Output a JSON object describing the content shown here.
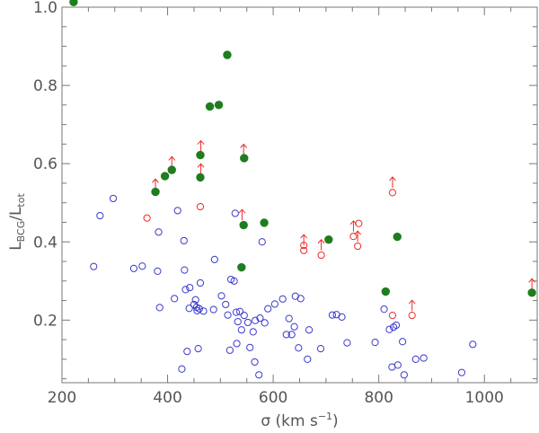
{
  "chart_data": {
    "type": "scatter",
    "xlabel_main": "σ (km s",
    "xlabel_exp": "−1",
    "xlabel_close": ")",
    "ylabel_L1": "L",
    "ylabel_sub1": "BCG",
    "ylabel_sep": "/L",
    "ylabel_sub2": "tot",
    "xlim": [
      200,
      1100
    ],
    "ylim": [
      0.04,
      1.0
    ],
    "x_ticks": [
      200,
      400,
      600,
      800,
      1000
    ],
    "x_tick_labels": [
      "200",
      "400",
      "600",
      "800",
      "1000"
    ],
    "y_ticks": [
      0.2,
      0.4,
      0.6,
      0.8,
      1.0
    ],
    "y_tick_labels": [
      "0.2",
      "0.4",
      "0.6",
      "0.8",
      "1.0"
    ],
    "colors": {
      "axis": "#777777",
      "blue": "#3a3acd",
      "red": "#ee2a2a",
      "green": "#1e7d1e"
    },
    "series": [
      {
        "marker": "open-circle",
        "color": "#3a3acd",
        "points": [
          [
            260,
            0.337
          ],
          [
            272,
            0.467
          ],
          [
            297,
            0.511
          ],
          [
            336,
            0.332
          ],
          [
            352,
            0.338
          ],
          [
            381,
            0.325
          ],
          [
            383,
            0.425
          ],
          [
            385,
            0.232
          ],
          [
            413,
            0.255
          ],
          [
            419,
            0.48
          ],
          [
            427,
            0.075
          ],
          [
            431,
            0.403
          ],
          [
            432,
            0.328
          ],
          [
            434,
            0.278
          ],
          [
            437,
            0.12
          ],
          [
            441,
            0.23
          ],
          [
            442,
            0.283
          ],
          [
            450,
            0.24
          ],
          [
            453,
            0.252
          ],
          [
            455,
            0.233
          ],
          [
            456,
            0.224
          ],
          [
            458,
            0.127
          ],
          [
            460,
            0.229
          ],
          [
            462,
            0.295
          ],
          [
            468,
            0.223
          ],
          [
            487,
            0.227
          ],
          [
            489,
            0.355
          ],
          [
            502,
            0.262
          ],
          [
            510,
            0.24
          ],
          [
            514,
            0.213
          ],
          [
            518,
            0.123
          ],
          [
            520,
            0.304
          ],
          [
            526,
            0.3
          ],
          [
            528,
            0.473
          ],
          [
            530,
            0.22
          ],
          [
            531,
            0.14
          ],
          [
            533,
            0.196
          ],
          [
            537,
            0.222
          ],
          [
            540,
            0.175
          ],
          [
            545,
            0.212
          ],
          [
            552,
            0.194
          ],
          [
            556,
            0.13
          ],
          [
            562,
            0.17
          ],
          [
            565,
            0.093
          ],
          [
            566,
            0.199
          ],
          [
            573,
            0.06
          ],
          [
            575,
            0.205
          ],
          [
            579,
            0.4
          ],
          [
            584,
            0.193
          ],
          [
            590,
            0.229
          ],
          [
            603,
            0.241
          ],
          [
            618,
            0.254
          ],
          [
            625,
            0.163
          ],
          [
            630,
            0.204
          ],
          [
            635,
            0.163
          ],
          [
            640,
            0.183
          ],
          [
            642,
            0.261
          ],
          [
            648,
            0.129
          ],
          [
            652,
            0.255
          ],
          [
            665,
            0.1
          ],
          [
            668,
            0.175
          ],
          [
            690,
            0.127
          ],
          [
            712,
            0.213
          ],
          [
            720,
            0.214
          ],
          [
            730,
            0.208
          ],
          [
            740,
            0.142
          ],
          [
            793,
            0.143
          ],
          [
            810,
            0.228
          ],
          [
            820,
            0.176
          ],
          [
            825,
            0.08
          ],
          [
            828,
            0.182
          ],
          [
            833,
            0.187
          ],
          [
            836,
            0.085
          ],
          [
            845,
            0.145
          ],
          [
            848,
            0.06
          ],
          [
            870,
            0.1
          ],
          [
            885,
            0.103
          ],
          [
            957,
            0.066
          ],
          [
            978,
            0.138
          ]
        ]
      },
      {
        "marker": "open-circle",
        "color": "#ee2a2a",
        "points": [
          [
            361,
            0.461
          ],
          [
            462,
            0.49
          ],
          [
            826,
            0.212
          ],
          [
            863,
            0.212
          ],
          [
            691,
            0.366
          ],
          [
            658,
            0.378
          ],
          [
            658,
            0.391
          ],
          [
            752,
            0.414
          ],
          [
            760,
            0.389
          ],
          [
            762,
            0.447
          ],
          [
            826,
            0.526
          ]
        ]
      },
      {
        "marker": "up-arrow",
        "color": "#ee2a2a",
        "points": [
          [
            377,
            0.547
          ],
          [
            408,
            0.604
          ],
          [
            463,
            0.586
          ],
          [
            463,
            0.645
          ],
          [
            541,
            0.469
          ],
          [
            544,
            0.636
          ],
          [
            658,
            0.405
          ],
          [
            691,
            0.392
          ],
          [
            752,
            0.44
          ],
          [
            760,
            0.414
          ],
          [
            826,
            0.552
          ],
          [
            863,
            0.237
          ],
          [
            1090,
            0.292
          ]
        ]
      },
      {
        "marker": "filled-circle",
        "color": "#1e7d1e",
        "points": [
          [
            222,
            1.013
          ],
          [
            377,
            0.528
          ],
          [
            395,
            0.568
          ],
          [
            408,
            0.584
          ],
          [
            462,
            0.622
          ],
          [
            462,
            0.565
          ],
          [
            480,
            0.746
          ],
          [
            497,
            0.75
          ],
          [
            513,
            0.878
          ],
          [
            540,
            0.335
          ],
          [
            544,
            0.443
          ],
          [
            545,
            0.614
          ],
          [
            583,
            0.449
          ],
          [
            705,
            0.406
          ],
          [
            813,
            0.273
          ],
          [
            835,
            0.413
          ],
          [
            1090,
            0.27
          ]
        ]
      }
    ]
  }
}
